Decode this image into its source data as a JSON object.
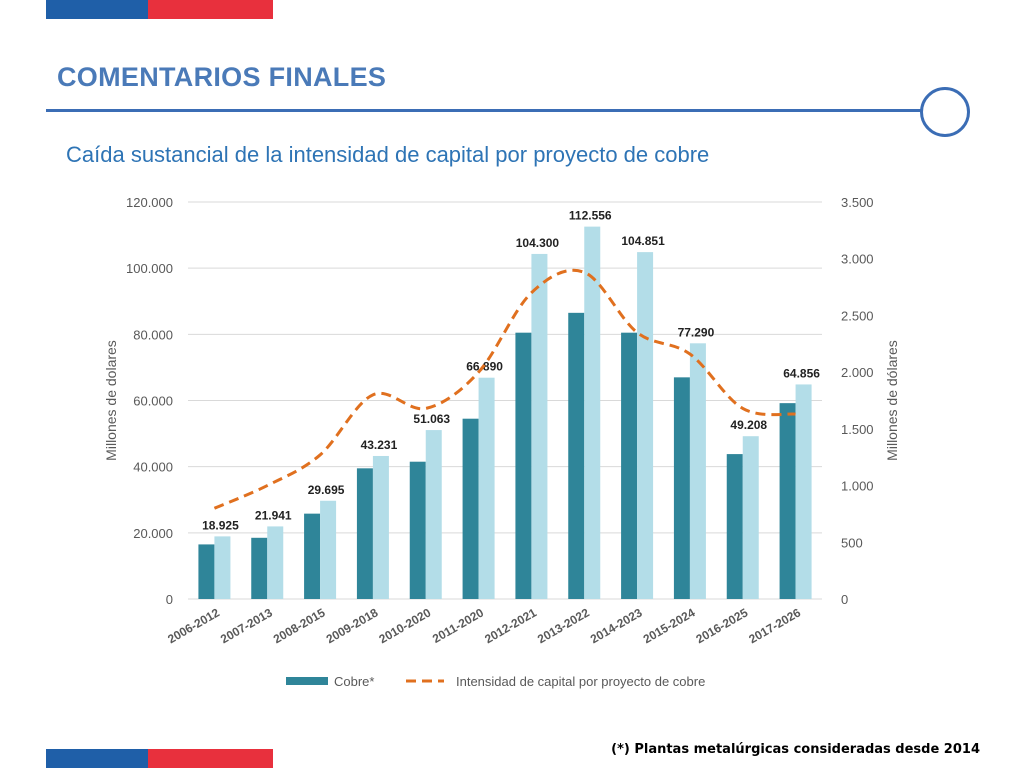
{
  "header": {
    "title": "COMENTARIOS FINALES",
    "subtitle": "Caída sustancial de la intensidad de capital por proyecto de cobre"
  },
  "colors": {
    "flag_blue": "#1f5fa8",
    "flag_red": "#e8303d",
    "title": "#4a7ab8",
    "rule": "#3b6db5",
    "bar_dark": "#2f8599",
    "bar_light": "#b3dde8",
    "line": "#e0701f",
    "grid": "#d9d9d9",
    "axis_text": "#595959"
  },
  "footnote": "(*) Plantas metalúrgicas consideradas desde 2014",
  "chart_data": {
    "type": "bar",
    "categories": [
      "2006-2012",
      "2007-2013",
      "2008-2015",
      "2009-2018",
      "2010-2020",
      "2011-2020",
      "2012-2021",
      "2013-2022",
      "2014-2023",
      "2015-2024",
      "2016-2025",
      "2017-2026"
    ],
    "series": [
      {
        "name": "Cobre*",
        "type": "bar",
        "axis": "left",
        "style": "dark",
        "values": [
          16500,
          18500,
          25800,
          39500,
          41500,
          54500,
          80500,
          86500,
          80500,
          67000,
          43800,
          59200
        ]
      },
      {
        "name": "",
        "type": "bar",
        "axis": "left",
        "style": "light",
        "values": [
          18925,
          21941,
          29695,
          43231,
          51063,
          66890,
          104300,
          112556,
          104851,
          77290,
          49208,
          64856
        ],
        "labels": [
          "18.925",
          "21.941",
          "29.695",
          "43.231",
          "51.063",
          "66.890",
          "104.300",
          "112.556",
          "104.851",
          "77.290",
          "49.208",
          "64.856"
        ]
      },
      {
        "name": "Intensidad de capital por proyecto de cobre",
        "type": "line",
        "axis": "right",
        "style": "dashed",
        "values": [
          800,
          1000,
          1270,
          1800,
          1680,
          2000,
          2700,
          2880,
          2350,
          2160,
          1680,
          1630
        ]
      }
    ],
    "ylabel": "Millones de dolares",
    "ylabel_right": "Millones de dólares",
    "ylim": [
      0,
      120000
    ],
    "ylim_right": [
      0,
      3500
    ],
    "yticks": [
      0,
      20000,
      40000,
      60000,
      80000,
      100000,
      120000
    ],
    "ytick_labels": [
      "0",
      "20.000",
      "40.000",
      "60.000",
      "80.000",
      "100.000",
      "120.000"
    ],
    "yticks_right": [
      0,
      500,
      1000,
      1500,
      2000,
      2500,
      3000,
      3500
    ],
    "ytick_labels_right": [
      "0",
      "500",
      "1.000",
      "1.500",
      "2.000",
      "2.500",
      "3.000",
      "3.500"
    ],
    "grid": true,
    "legend": [
      "Cobre*",
      "Intensidad de capital por proyecto de cobre"
    ],
    "legend_position": "bottom"
  }
}
